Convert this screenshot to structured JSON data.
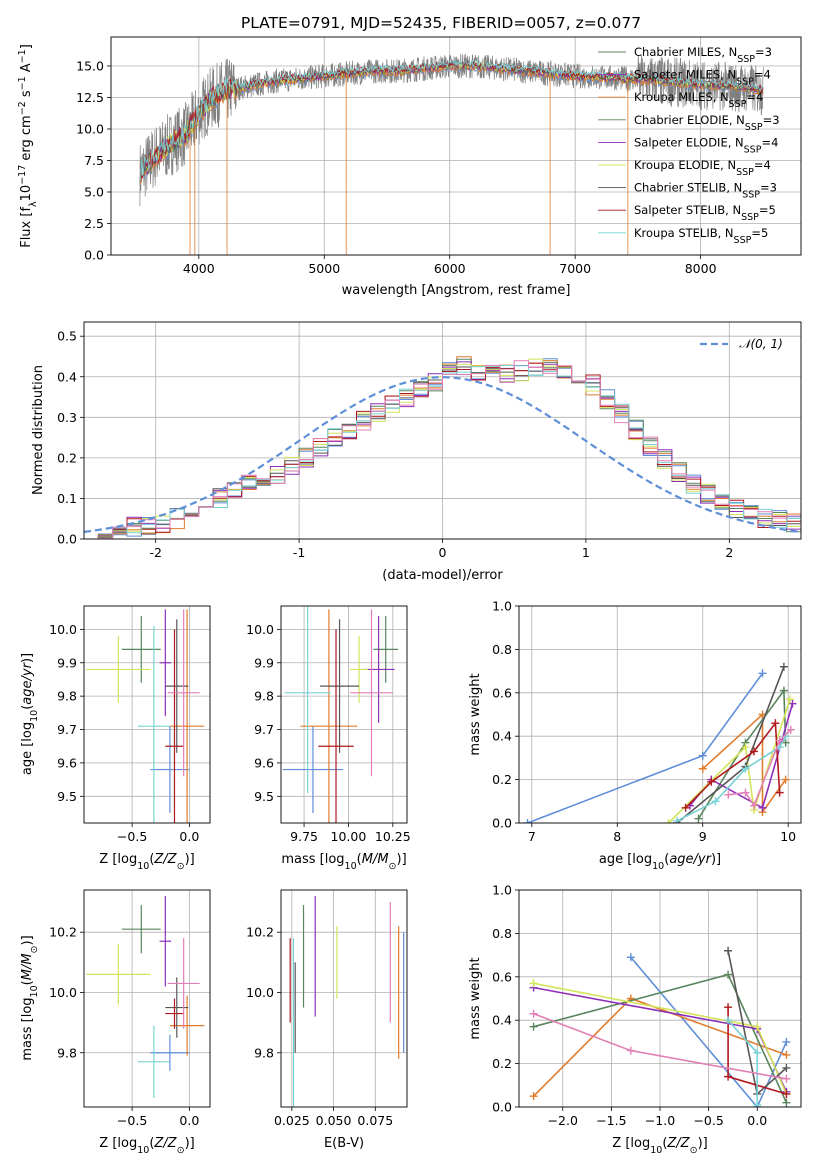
{
  "figure": {
    "title": "PLATE=0791, MJD=52435, FIBERID=0057, z=0.077"
  },
  "colors": {
    "models": [
      "#5f8fd8",
      "#e07c2d",
      "#59855c",
      "#8e2fb6",
      "#d4e35a",
      "#575757",
      "#b0191f",
      "#79d2d6",
      "#e27fb6"
    ]
  },
  "chart_data": [
    {
      "id": "spectrum",
      "type": "line",
      "xlabel": "wavelength [Angstrom, rest frame]",
      "ylabel": "Flux [f_λ 10⁻¹⁷ erg cm⁻² s⁻¹ A⁻¹]",
      "xlim": [
        3300,
        8800
      ],
      "ylim": [
        0,
        17.3
      ],
      "xticks": [
        4000,
        5000,
        6000,
        7000,
        8000
      ],
      "yticks": [
        0.0,
        2.5,
        5.0,
        7.5,
        10.0,
        12.5,
        15.0
      ],
      "grid": true,
      "legend_placement": "upper right",
      "data_continuum": {
        "x": [
          3530,
          3650,
          3800,
          3900,
          4000,
          4100,
          4200,
          4400,
          4600,
          4800,
          5000,
          5200,
          5400,
          5600,
          5800,
          6000,
          6200,
          6400,
          6600,
          6800,
          7000,
          7200,
          7400,
          7600,
          7800,
          8000,
          8200,
          8400,
          8500
        ],
        "y": [
          6.5,
          7.8,
          9.0,
          9.6,
          11.2,
          12.4,
          13.0,
          13.4,
          13.8,
          14.0,
          14.2,
          14.4,
          14.6,
          14.6,
          14.8,
          15.0,
          15.0,
          14.8,
          14.6,
          14.4,
          14.2,
          14.1,
          14.0,
          13.9,
          13.7,
          13.5,
          13.4,
          13.2,
          13.0
        ]
      },
      "series": [
        {
          "name": "Chabrier MILES, N_SSP=3"
        },
        {
          "name": "Salpeter MILES, N_SSP=4"
        },
        {
          "name": "Kroupa MILES, N_SSP=4"
        },
        {
          "name": "Chabrier ELODIE, N_SSP=3"
        },
        {
          "name": "Salpeter ELODIE, N_SSP=4"
        },
        {
          "name": "Kroupa ELODIE, N_SSP=4"
        },
        {
          "name": "Chabrier STELIB, N_SSP=3"
        },
        {
          "name": "Salpeter STELIB, N_SSP=5"
        },
        {
          "name": "Kroupa STELIB, N_SSP=5"
        }
      ]
    },
    {
      "id": "residuals",
      "type": "line",
      "xlabel": "(data-model)/error",
      "ylabel": "Normed distribution",
      "xlim": [
        -2.5,
        2.5
      ],
      "ylim": [
        0,
        0.535
      ],
      "xticks": [
        -2,
        -1,
        0,
        1,
        2
      ],
      "yticks": [
        0.0,
        0.1,
        0.2,
        0.3,
        0.4,
        0.5
      ],
      "grid": true,
      "legend_placement": "upper right",
      "reference": {
        "name": "𝒩(0,1)",
        "mu": 0,
        "sigma": 1
      },
      "bin_edges_start": -2.5,
      "bin_width": 0.1,
      "histogram_envelope": [
        0.01,
        0.015,
        0.02,
        0.03,
        0.035,
        0.04,
        0.05,
        0.065,
        0.08,
        0.1,
        0.12,
        0.135,
        0.15,
        0.16,
        0.18,
        0.2,
        0.225,
        0.25,
        0.265,
        0.29,
        0.31,
        0.33,
        0.345,
        0.37,
        0.39,
        0.42,
        0.43,
        0.41,
        0.405,
        0.41,
        0.415,
        0.42,
        0.425,
        0.42,
        0.405,
        0.38,
        0.345,
        0.31,
        0.27,
        0.23,
        0.195,
        0.165,
        0.135,
        0.11,
        0.09,
        0.075,
        0.06,
        0.05,
        0.045,
        0.04,
        0.035,
        0.03,
        0.025,
        0.02,
        0.018,
        0.015,
        0.012,
        0.01,
        0.008,
        0.007
      ]
    },
    {
      "id": "age_vs_Z",
      "type": "scatter",
      "xlabel": "Z [log10(Z/Z⊙)]",
      "ylabel": "age [log10(age/yr)]",
      "xlim": [
        -0.92,
        0.18
      ],
      "ylim": [
        9.42,
        10.07
      ],
      "xticks": [
        -0.5,
        0.0
      ],
      "xtick_labels": [
        "−0.5",
        "0.0"
      ],
      "yticks": [
        9.5,
        9.6,
        9.7,
        9.8,
        9.9,
        10.0
      ],
      "grid": true,
      "points": [
        {
          "x": -0.17,
          "xerr": 0.17,
          "y": 9.58,
          "yerr": 0.13
        },
        {
          "x": -0.02,
          "xerr": 0.15,
          "y": 9.71,
          "yerr": 0.35
        },
        {
          "x": -0.42,
          "xerr": 0.17,
          "y": 9.94,
          "yerr": 0.1
        },
        {
          "x": -0.21,
          "xerr": 0.05,
          "y": 9.9,
          "yerr": 0.16
        },
        {
          "x": -0.62,
          "xerr": 0.28,
          "y": 9.88,
          "yerr": 0.1
        },
        {
          "x": -0.11,
          "xerr": 0.1,
          "y": 9.83,
          "yerr": 0.2
        },
        {
          "x": -0.13,
          "xerr": 0.08,
          "y": 9.65,
          "yerr": 0.35
        },
        {
          "x": -0.31,
          "xerr": 0.14,
          "y": 9.71,
          "yerr": 0.3
        },
        {
          "x": -0.05,
          "xerr": 0.14,
          "y": 9.81,
          "yerr": 0.25
        }
      ]
    },
    {
      "id": "age_vs_mass",
      "type": "scatter",
      "xlabel": "mass [log10(M/M⊙)]",
      "xlim": [
        9.62,
        10.33
      ],
      "ylim": [
        9.42,
        10.07
      ],
      "xticks": [
        9.75,
        10.0,
        10.25
      ],
      "xtick_labels": [
        "9.75",
        "10.00",
        "10.25"
      ],
      "yticks": [
        9.5,
        9.6,
        9.7,
        9.8,
        9.9,
        10.0
      ],
      "grid": true,
      "points": [
        {
          "x": 9.8,
          "xerr": 0.17,
          "y": 9.58,
          "yerr": 0.13
        },
        {
          "x": 9.89,
          "xerr": 0.16,
          "y": 9.71,
          "yerr": 0.35
        },
        {
          "x": 10.21,
          "xerr": 0.07,
          "y": 9.94,
          "yerr": 0.1
        },
        {
          "x": 10.17,
          "xerr": 0.09,
          "y": 9.88,
          "yerr": 0.16
        },
        {
          "x": 10.06,
          "xerr": 0.05,
          "y": 9.88,
          "yerr": 0.1
        },
        {
          "x": 9.95,
          "xerr": 0.11,
          "y": 9.83,
          "yerr": 0.2
        },
        {
          "x": 9.93,
          "xerr": 0.1,
          "y": 9.65,
          "yerr": 0.35
        },
        {
          "x": 9.77,
          "xerr": 0.13,
          "y": 9.81,
          "yerr": 0.3
        },
        {
          "x": 10.13,
          "xerr": 0.12,
          "y": 9.81,
          "yerr": 0.25
        }
      ]
    },
    {
      "id": "weight_vs_age",
      "type": "line",
      "xlabel": "age  [log10(age/yr)]",
      "ylabel": "mass weight",
      "xlim": [
        6.85,
        10.15
      ],
      "ylim": [
        0,
        1.0
      ],
      "xticks": [
        7,
        8,
        9,
        10
      ],
      "yticks": [
        0.0,
        0.2,
        0.4,
        0.6,
        0.8,
        1.0
      ],
      "grid": true,
      "series": [
        {
          "x": [
            6.95,
            9.0,
            9.7
          ],
          "y": [
            0.0,
            0.31,
            0.69
          ]
        },
        {
          "x": [
            9.0,
            9.7,
            9.7,
            9.97
          ],
          "y": [
            0.25,
            0.5,
            0.05,
            0.2
          ]
        },
        {
          "x": [
            8.95,
            9.5,
            9.95,
            9.97
          ],
          "y": [
            0.02,
            0.37,
            0.61,
            0.37
          ]
        },
        {
          "x": [
            8.85,
            9.1,
            9.7,
            10.05
          ],
          "y": [
            0.08,
            0.2,
            0.07,
            0.55
          ]
        },
        {
          "x": [
            8.6,
            9.5,
            9.6,
            10.02
          ],
          "y": [
            0.0,
            0.35,
            0.06,
            0.57
          ]
        },
        {
          "x": [
            8.7,
            9.5,
            9.95
          ],
          "y": [
            0.0,
            0.26,
            0.72
          ]
        },
        {
          "x": [
            8.8,
            9.1,
            9.6,
            9.85,
            9.9
          ],
          "y": [
            0.07,
            0.19,
            0.33,
            0.46,
            0.14
          ]
        },
        {
          "x": [
            8.7,
            9.15,
            9.5,
            9.9,
            9.97
          ],
          "y": [
            0.01,
            0.1,
            0.25,
            0.35,
            0.4
          ]
        },
        {
          "x": [
            9.3,
            9.5,
            9.6,
            9.9,
            10.03
          ],
          "y": [
            0.13,
            0.14,
            0.08,
            0.38,
            0.43
          ]
        }
      ]
    },
    {
      "id": "mass_vs_Z",
      "type": "scatter",
      "xlabel": "Z [log10(Z/Z⊙)]",
      "ylabel": "mass [log10(M/M⊙)]",
      "xlim": [
        -0.92,
        0.18
      ],
      "ylim": [
        9.62,
        10.34
      ],
      "xticks": [
        -0.5,
        0.0
      ],
      "xtick_labels": [
        "−0.5",
        "0.0"
      ],
      "yticks": [
        9.8,
        10.0,
        10.2
      ],
      "xtick_labels_y": [
        "9.8",
        "10.0",
        "10.2"
      ],
      "grid": true,
      "points": [
        {
          "x": -0.17,
          "xerr": 0.17,
          "y": 9.8,
          "yerr": 0.06
        },
        {
          "x": -0.02,
          "xerr": 0.15,
          "y": 9.89,
          "yerr": 0.1
        },
        {
          "x": -0.42,
          "xerr": 0.17,
          "y": 10.21,
          "yerr": 0.08
        },
        {
          "x": -0.21,
          "xerr": 0.05,
          "y": 10.17,
          "yerr": 0.15
        },
        {
          "x": -0.62,
          "xerr": 0.28,
          "y": 10.06,
          "yerr": 0.1
        },
        {
          "x": -0.11,
          "xerr": 0.1,
          "y": 9.95,
          "yerr": 0.1
        },
        {
          "x": -0.13,
          "xerr": 0.08,
          "y": 9.93,
          "yerr": 0.05
        },
        {
          "x": -0.31,
          "xerr": 0.14,
          "y": 9.77,
          "yerr": 0.12
        },
        {
          "x": -0.05,
          "xerr": 0.14,
          "y": 10.03,
          "yerr": 0.15
        }
      ]
    },
    {
      "id": "mass_vs_EBV",
      "type": "scatter",
      "xlabel": "E(B-V)",
      "xlim": [
        0.0185,
        0.094
      ],
      "ylim": [
        9.62,
        10.34
      ],
      "xticks": [
        0.025,
        0.05,
        0.075
      ],
      "xtick_labels": [
        "0.025",
        "0.050",
        "0.075"
      ],
      "yticks": [
        9.8,
        10.0,
        10.2
      ],
      "grid": true,
      "points": [
        {
          "x": 0.092,
          "y": 10.0,
          "yerr": 0.2
        },
        {
          "x": 0.089,
          "y": 10.0,
          "yerr": 0.22
        },
        {
          "x": 0.032,
          "y": 10.12,
          "yerr": 0.17
        },
        {
          "x": 0.039,
          "y": 10.12,
          "yerr": 0.2
        },
        {
          "x": 0.052,
          "y": 10.1,
          "yerr": 0.12
        },
        {
          "x": 0.027,
          "y": 9.95,
          "yerr": 0.15
        },
        {
          "x": 0.024,
          "y": 10.04,
          "yerr": 0.14
        },
        {
          "x": 0.026,
          "y": 9.9,
          "yerr": 0.28
        },
        {
          "x": 0.084,
          "y": 10.1,
          "yerr": 0.2
        }
      ]
    },
    {
      "id": "weight_vs_Z",
      "type": "line",
      "xlabel": "Z [log10(Z/Z⊙)]",
      "ylabel": "mass weight",
      "xlim": [
        -2.45,
        0.45
      ],
      "ylim": [
        0,
        1.0
      ],
      "xticks": [
        -2.0,
        -1.5,
        -1.0,
        -0.5,
        0.0
      ],
      "xtick_labels": [
        "−2.0",
        "−1.5",
        "−1.0",
        "−0.5",
        "0.0"
      ],
      "yticks": [
        0.0,
        0.2,
        0.4,
        0.6,
        0.8,
        1.0
      ],
      "grid": true,
      "series": [
        {
          "x": [
            -1.3,
            0.0,
            0.3
          ],
          "y": [
            0.69,
            0.0,
            0.3
          ]
        },
        {
          "x": [
            -2.3,
            -1.3,
            0.3
          ],
          "y": [
            0.05,
            0.5,
            0.24
          ]
        },
        {
          "x": [
            -2.3,
            -0.3,
            0.3
          ],
          "y": [
            0.37,
            0.61,
            0.02
          ]
        },
        {
          "x": [
            -2.3,
            0.0,
            0.3
          ],
          "y": [
            0.55,
            0.36,
            0.07
          ]
        },
        {
          "x": [
            -2.3,
            0.0,
            0.3
          ],
          "y": [
            0.57,
            0.37,
            0.06
          ]
        },
        {
          "x": [
            -0.3,
            0.0,
            0.3
          ],
          "y": [
            0.72,
            0.06,
            0.18
          ]
        },
        {
          "x": [
            -0.3,
            -0.3,
            0.3
          ],
          "y": [
            0.46,
            0.14,
            0.06
          ]
        },
        {
          "x": [
            -0.3,
            0.0,
            0.0
          ],
          "y": [
            0.4,
            0.25,
            0.01
          ]
        },
        {
          "x": [
            -2.3,
            -1.3,
            0.3
          ],
          "y": [
            0.43,
            0.26,
            0.13
          ]
        }
      ]
    }
  ]
}
